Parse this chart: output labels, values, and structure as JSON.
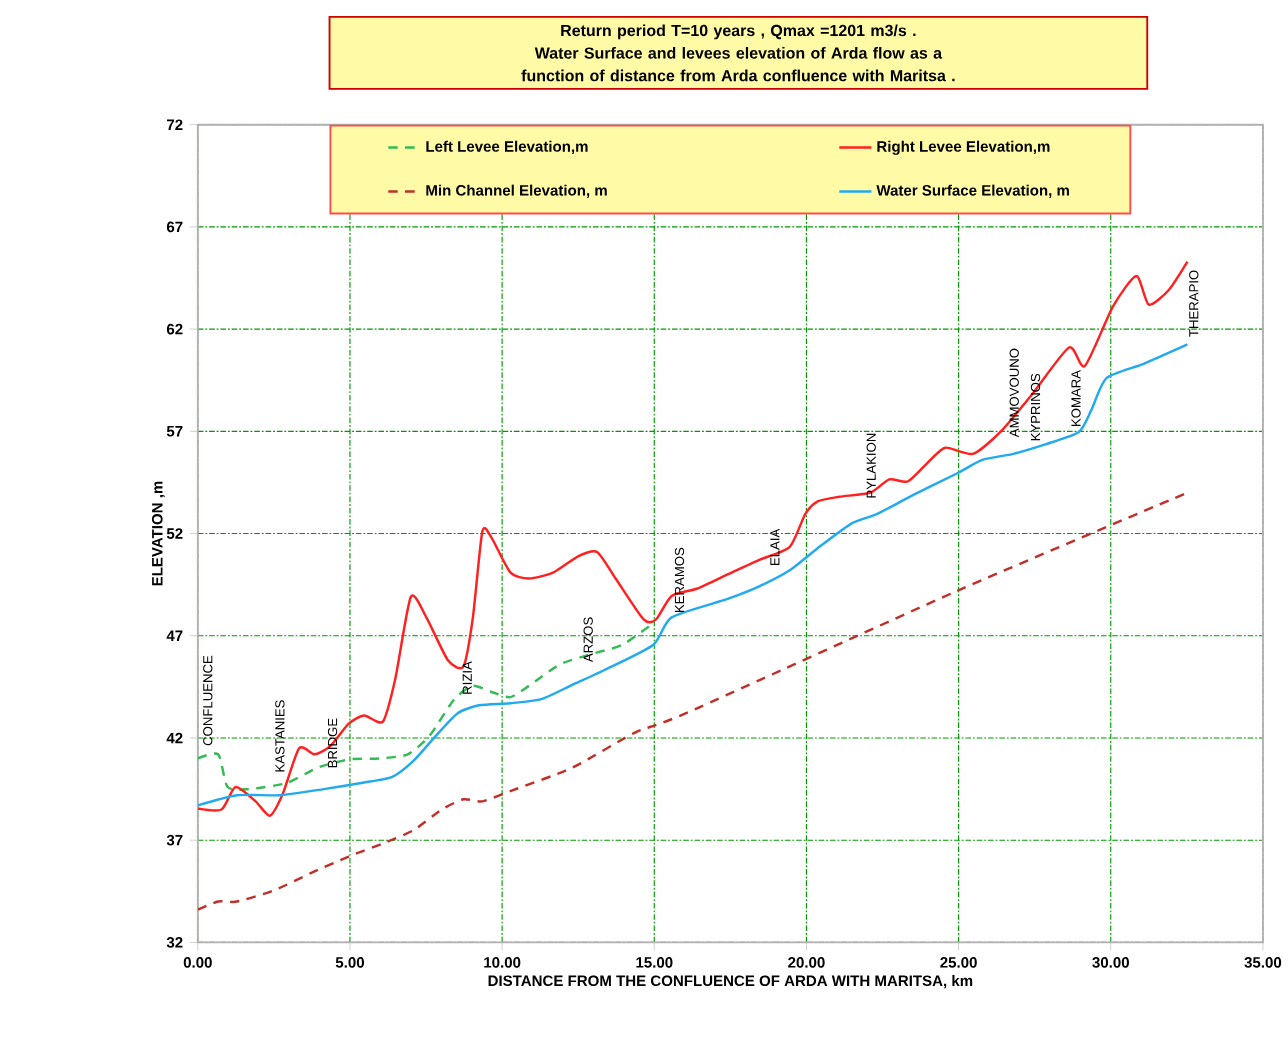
{
  "chart_data": {
    "type": "line",
    "title": "Return period  T=10 years  , Qmax =1201   m3/s .",
    "subtitle": "Water  Surface and levees  elevation  of  Arda  flow  as a function of  distance  from  Arda confluence with Maritsa  .",
    "xlabel": "DISTANCE  FROM THE CONFLUENCE OF ARDA WITH MARITSA, km",
    "ylabel": "ELEVATION ,m",
    "xlim": [
      0,
      35
    ],
    "ylim": [
      32,
      72
    ],
    "xticks": [
      {
        "value": 0,
        "label": "0.00"
      },
      {
        "value": 5,
        "label": "5.00"
      },
      {
        "value": 10,
        "label": "10.00"
      },
      {
        "value": 15,
        "label": "15.00"
      },
      {
        "value": 20,
        "label": "20.00"
      },
      {
        "value": 25,
        "label": "25.00"
      },
      {
        "value": 30,
        "label": "30.00"
      },
      {
        "value": 35,
        "label": "35.00"
      }
    ],
    "yticks": [
      32,
      37,
      42,
      47,
      52,
      57,
      62,
      67,
      72
    ],
    "grid": true,
    "legend": "top",
    "series": [
      {
        "name": "Left Levee  Elevation,m",
        "color": "#33bb55",
        "line_style": "dashed",
        "x": [
          0,
          0.67,
          0.98,
          1.69,
          2.92,
          3.94,
          4.96,
          5.98,
          6.9,
          7.61,
          8.43,
          9.04,
          9.65,
          10.27,
          10.88,
          11.9,
          12.92,
          13.94,
          14.96
        ],
        "values": [
          41.0,
          41.2,
          39.6,
          39.5,
          39.8,
          40.55,
          40.95,
          41.0,
          41.2,
          42.1,
          43.9,
          44.55,
          44.25,
          44.0,
          44.55,
          45.6,
          46.1,
          46.55,
          47.6
        ]
      },
      {
        "name": "Right  Levee  Elevation,m",
        "color": "#ff2020",
        "line_style": "solid",
        "x": [
          0,
          0.78,
          1.24,
          1.9,
          2.37,
          2.8,
          3.33,
          3.84,
          4.35,
          4.96,
          5.47,
          6.08,
          6.49,
          7.0,
          7.51,
          8.22,
          8.73,
          9.04,
          9.35,
          9.65,
          10.27,
          10.88,
          11.69,
          12.51,
          13.12,
          13.73,
          14.65,
          15.06,
          15.57,
          16.39,
          17.41,
          18.43,
          19.45,
          19.96,
          20.37,
          21.08,
          22.1,
          22.72,
          23.33,
          23.94,
          24.56,
          25.47,
          26.39,
          27.41,
          28.63,
          29.15,
          30.07,
          30.84,
          31.25,
          31.9,
          32.52
        ],
        "values": [
          38.55,
          38.5,
          39.6,
          38.9,
          38.2,
          39.3,
          41.5,
          41.2,
          41.6,
          42.7,
          43.1,
          42.8,
          44.9,
          48.9,
          47.9,
          45.8,
          45.5,
          47.9,
          52.1,
          51.8,
          50.1,
          49.8,
          50.1,
          50.9,
          51.1,
          49.8,
          47.8,
          47.8,
          48.95,
          49.3,
          50.0,
          50.7,
          51.35,
          52.95,
          53.57,
          53.8,
          54.0,
          54.65,
          54.55,
          55.4,
          56.2,
          55.9,
          57.0,
          58.8,
          61.1,
          60.2,
          63.1,
          64.6,
          63.2,
          63.9,
          65.3
        ]
      },
      {
        "name": "Min Channel Elevation, m",
        "color": "#c0302a",
        "line_style": "dashed",
        "x": [
          0,
          0.67,
          1.29,
          2.51,
          3.73,
          4.96,
          6.18,
          7.1,
          8.02,
          8.73,
          9.35,
          10.27,
          12.31,
          14.35,
          16.18,
          24.96,
          32.52
        ],
        "values": [
          33.6,
          34.0,
          34.0,
          34.55,
          35.4,
          36.2,
          36.9,
          37.5,
          38.5,
          39.0,
          38.9,
          39.4,
          40.55,
          42.25,
          43.3,
          49.2,
          54.0
        ]
      },
      {
        "name": "Water Surface Elevation, m",
        "color": "#22aaee",
        "line_style": "solid",
        "x": [
          0,
          1.29,
          2.71,
          4.14,
          5.37,
          6.39,
          7.1,
          7.82,
          8.53,
          9.24,
          10.27,
          11.29,
          12.31,
          13.33,
          14.96,
          15.57,
          17.41,
          18.43,
          19.45,
          20.47,
          21.49,
          22.31,
          23.53,
          24.96,
          25.78,
          26.8,
          27.82,
          28.94,
          29.35,
          29.86,
          31.08,
          32.52
        ],
        "values": [
          38.7,
          39.2,
          39.2,
          39.5,
          39.8,
          40.1,
          40.9,
          42.1,
          43.2,
          43.6,
          43.7,
          43.9,
          44.6,
          45.3,
          46.55,
          47.9,
          48.8,
          49.4,
          50.2,
          51.4,
          52.5,
          52.95,
          53.9,
          54.95,
          55.6,
          55.9,
          56.35,
          56.95,
          58.0,
          59.6,
          60.3,
          61.25
        ]
      }
    ],
    "annotations": [
      {
        "text": "CONFLUENCE",
        "x": 0.1,
        "y": 41.5
      },
      {
        "text": "KASTANIES",
        "x": 2.47,
        "y": 40.2
      },
      {
        "text": "BRIDGE",
        "x": 4.2,
        "y": 40.4
      },
      {
        "text": "RIZIA",
        "x": 8.63,
        "y": 44.0
      },
      {
        "text": "ARZOS",
        "x": 12.6,
        "y": 45.6
      },
      {
        "text": "KERAMOS",
        "x": 15.6,
        "y": 48.0
      },
      {
        "text": "ELAIA",
        "x": 18.74,
        "y": 50.3
      },
      {
        "text": "PYLAKION",
        "x": 21.9,
        "y": 53.6
      },
      {
        "text": "AMMOVOUNO",
        "x": 26.6,
        "y": 56.6
      },
      {
        "text": "KYPRINOS",
        "x": 27.3,
        "y": 56.4
      },
      {
        "text": "KOMARA",
        "x": 28.63,
        "y": 57.1
      },
      {
        "text": "THERAPIO",
        "x": 32.5,
        "y": 61.5
      }
    ]
  }
}
